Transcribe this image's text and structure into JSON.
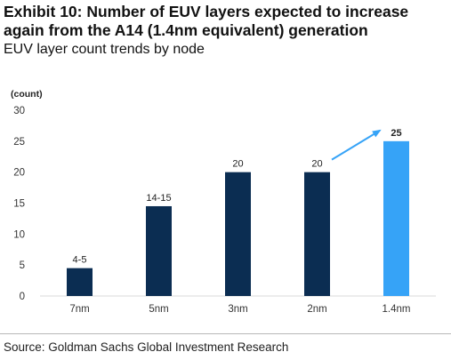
{
  "header": {
    "title": "Exhibit 10: Number of EUV layers expected to increase again from the A14 (1.4nm equivalent) generation",
    "subtitle": "EUV layer count trends by node"
  },
  "source": "Source: Goldman Sachs Global Investment Research",
  "chart_data": {
    "type": "bar",
    "ylabel": "(count)",
    "xlabel": "",
    "ylim": [
      0,
      30
    ],
    "yticks": [
      0,
      5,
      10,
      15,
      20,
      25,
      30
    ],
    "grid": false,
    "categories": [
      "7nm",
      "5nm",
      "3nm",
      "2nm",
      "1.4nm"
    ],
    "values": [
      4.5,
      14.5,
      20,
      20,
      25
    ],
    "data_labels": [
      "4-5",
      "14-15",
      "20",
      "20",
      "25"
    ],
    "colors": {
      "default": "#0b2d52",
      "highlight": "#36a3f7",
      "arrow": "#36a3f7"
    },
    "highlight_index": 4,
    "annotation": {
      "type": "arrow",
      "from_index": 3,
      "to_index": 4
    }
  }
}
